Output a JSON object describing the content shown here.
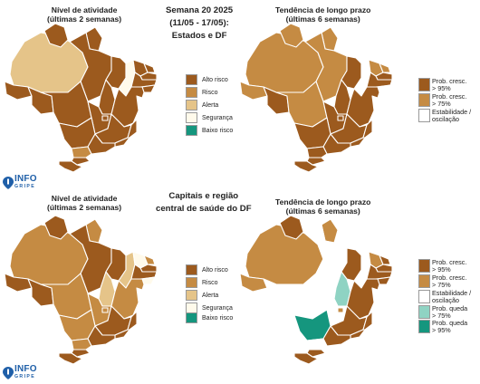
{
  "colors": {
    "alto_risco": "#9c5a1e",
    "risco": "#c58b43",
    "alerta": "#e5c489",
    "seguranca": "#fffaeb",
    "baixo_risco": "#15967e",
    "prob_cresc_95": "#9c5a1e",
    "prob_cresc_75": "#c58b43",
    "estabilidade": "#ffffff",
    "prob_queda_75": "#8fd3c3",
    "prob_queda_95": "#15967e"
  },
  "top": {
    "center_title": [
      "Semana 20 2025",
      "(11/05 - 17/05):",
      "Estados e DF"
    ],
    "left_title": [
      "Nível de atividade",
      "(últimas 2 semanas)"
    ],
    "right_title": [
      "Tendência de longo prazo",
      "(últimas 6 semanas)"
    ]
  },
  "bottom": {
    "center_title": [
      "Capitais e região",
      "central de saúde do DF"
    ],
    "left_title": [
      "Nível de atividade",
      "(últimas 2 semanas)"
    ],
    "right_title": [
      "Tendência de longo prazo",
      "(últimas 6 semanas)"
    ]
  },
  "legend_activity": [
    {
      "label": "Alto risco",
      "color": "alto_risco"
    },
    {
      "label": "Risco",
      "color": "risco"
    },
    {
      "label": "Alerta",
      "color": "alerta"
    },
    {
      "label": "Segurança",
      "color": "seguranca"
    },
    {
      "label": "Baixo risco",
      "color": "baixo_risco"
    }
  ],
  "legend_trend_top": [
    {
      "label": [
        "Prob. cresc.",
        "> 95%"
      ],
      "color": "prob_cresc_95"
    },
    {
      "label": [
        "Prob. cresc.",
        "> 75%"
      ],
      "color": "prob_cresc_75"
    },
    {
      "label": [
        "Estabilidade /",
        "oscilação"
      ],
      "color": "estabilidade"
    }
  ],
  "legend_trend_bottom": [
    {
      "label": [
        "Prob. cresc.",
        "> 95%"
      ],
      "color": "prob_cresc_95"
    },
    {
      "label": [
        "Prob. cresc.",
        "> 75%"
      ],
      "color": "prob_cresc_75"
    },
    {
      "label": [
        "Estabilidade /",
        "oscilação"
      ],
      "color": "estabilidade"
    },
    {
      "label": [
        "Prob. queda",
        "> 75%"
      ],
      "color": "prob_queda_75"
    },
    {
      "label": [
        "Prob. queda",
        "> 95%"
      ],
      "color": "prob_queda_95"
    }
  ],
  "logo": {
    "main": "INFO",
    "sub": "GRIPE"
  },
  "maps": {
    "top_activity": {
      "AM": "alerta",
      "RR": "alto_risco",
      "AP": "alto_risco",
      "PA": "alto_risco",
      "AC": "alto_risco",
      "RO": "alto_risco",
      "MT": "alto_risco",
      "TO": "alto_risco",
      "MA": "alto_risco",
      "PI": "seguranca",
      "CE": "alto_risco",
      "RN": "alto_risco",
      "PB": "alto_risco",
      "PE": "alto_risco",
      "AL": "alto_risco",
      "SE": "alto_risco",
      "BA": "alto_risco",
      "GO": "alto_risco",
      "DF": "alto_risco",
      "MS": "alto_risco",
      "MG": "alto_risco",
      "ES": "alto_risco",
      "RJ": "alto_risco",
      "SP": "alto_risco",
      "PR": "risco",
      "SC": "alto_risco",
      "RS": "alto_risco"
    },
    "top_trend": {
      "AM": "prob_cresc_75",
      "RR": "prob_cresc_75",
      "AP": "prob_cresc_75",
      "PA": "prob_cresc_75",
      "AC": "prob_cresc_75",
      "RO": "prob_cresc_95",
      "MT": "prob_cresc_75",
      "TO": "prob_cresc_95",
      "MA": "prob_cresc_95",
      "PI": "estabilidade",
      "CE": "prob_cresc_75",
      "RN": "prob_cresc_75",
      "PB": "prob_cresc_95",
      "PE": "prob_cresc_95",
      "AL": "estabilidade",
      "SE": "prob_cresc_95",
      "BA": "prob_cresc_95",
      "GO": "prob_cresc_95",
      "DF": "prob_cresc_95",
      "MS": "prob_cresc_95",
      "MG": "prob_cresc_95",
      "ES": "prob_cresc_95",
      "RJ": "prob_cresc_95",
      "SP": "prob_cresc_95",
      "PR": "prob_cresc_95",
      "SC": "prob_cresc_95",
      "RS": "prob_cresc_95"
    },
    "bottom_activity": {
      "AM": "risco",
      "RR": "alto_risco",
      "AP": "risco",
      "PA": "alto_risco",
      "AC": "alto_risco",
      "RO": "alto_risco",
      "MT": "risco",
      "TO": "alerta",
      "MA": "alto_risco",
      "PI": "alerta",
      "CE": "seguranca",
      "RN": "risco",
      "PB": "alto_risco",
      "PE": "alto_risco",
      "AL": "seguranca",
      "SE": "alto_risco",
      "BA": "risco",
      "GO": "risco",
      "DF": "risco",
      "MS": "risco",
      "MG": "alto_risco",
      "ES": "alto_risco",
      "RJ": "alto_risco",
      "SP": "alto_risco",
      "PR": "risco",
      "SC": "alto_risco",
      "RS": "alto_risco"
    },
    "bottom_trend": {
      "AM": "prob_cresc_75",
      "RR": "prob_cresc_95",
      "AP": "prob_cresc_75",
      "PA": "estabilidade",
      "AC": "prob_cresc_75",
      "RO": "estabilidade",
      "MT": "estabilidade",
      "TO": "prob_queda_75",
      "MA": "prob_cresc_95",
      "PI": "estabilidade",
      "CE": "prob_cresc_75",
      "RN": "prob_cresc_95",
      "PB": "prob_cresc_95",
      "PE": "prob_cresc_95",
      "AL": "prob_cresc_95",
      "SE": "estabilidade",
      "BA": "prob_cresc_95",
      "GO": "estabilidade",
      "DF": "prob_cresc_75",
      "MS": "prob_queda_95",
      "MG": "prob_cresc_95",
      "ES": "prob_cresc_95",
      "RJ": "prob_cresc_95",
      "SP": "prob_cresc_95",
      "PR": "estabilidade",
      "SC": "prob_cresc_95",
      "RS": "prob_cresc_95"
    }
  }
}
